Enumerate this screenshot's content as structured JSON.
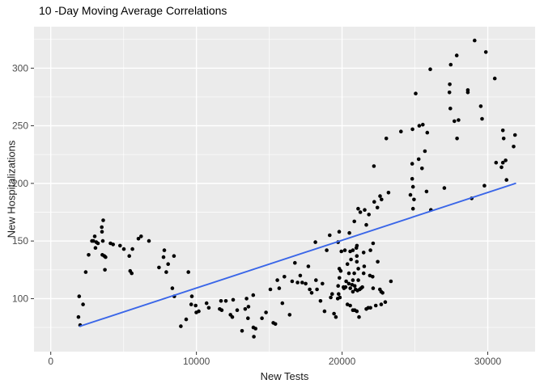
{
  "chart_data": {
    "type": "scatter",
    "title": "10 -Day Moving Average Correlations",
    "xlabel": "New Tests",
    "ylabel": "New Hospitalizations",
    "x_ticks": [
      0,
      10000,
      20000,
      30000
    ],
    "y_ticks": [
      100,
      150,
      200,
      250,
      300
    ],
    "xlim": [
      -1150,
      33250
    ],
    "ylim": [
      54,
      336
    ],
    "grid": true,
    "legend": "none",
    "panel_color": "#EBEBEB",
    "grid_major_color": "#FFFFFF",
    "grid_minor_color": "#F7F7F7",
    "tick_color": "#333333",
    "tick_label_color": "#4D4D4D",
    "point_color": "#000000",
    "trend_line": {
      "color": "#3A66E8",
      "x1": 2000,
      "y1": 76,
      "x2": 31900,
      "y2": 200
    },
    "points": [
      [
        1900,
        84
      ],
      [
        1950,
        102
      ],
      [
        2020,
        77
      ],
      [
        2220,
        95
      ],
      [
        2400,
        123
      ],
      [
        2600,
        138
      ],
      [
        2830,
        150
      ],
      [
        2930,
        150
      ],
      [
        3020,
        154
      ],
      [
        3070,
        144
      ],
      [
        3130,
        149
      ],
      [
        3240,
        148
      ],
      [
        3500,
        162
      ],
      [
        3520,
        158
      ],
      [
        3540,
        138
      ],
      [
        3575,
        150
      ],
      [
        3600,
        168
      ],
      [
        3680,
        137
      ],
      [
        3720,
        125
      ],
      [
        3760,
        136
      ],
      [
        4100,
        148
      ],
      [
        4280,
        147
      ],
      [
        4760,
        146
      ],
      [
        5020,
        143
      ],
      [
        5390,
        137
      ],
      [
        5450,
        124
      ],
      [
        5560,
        122
      ],
      [
        5610,
        143
      ],
      [
        6020,
        152
      ],
      [
        6200,
        154
      ],
      [
        6740,
        150
      ],
      [
        7430,
        127
      ],
      [
        7740,
        136
      ],
      [
        7800,
        142
      ],
      [
        7930,
        123
      ],
      [
        8060,
        130
      ],
      [
        8350,
        109
      ],
      [
        8460,
        137
      ],
      [
        8480,
        102
      ],
      [
        8930,
        76
      ],
      [
        9300,
        82
      ],
      [
        9450,
        123
      ],
      [
        9640,
        95
      ],
      [
        9685,
        102
      ],
      [
        9950,
        94
      ],
      [
        9990,
        88
      ],
      [
        10160,
        89
      ],
      [
        10700,
        96
      ],
      [
        10850,
        92
      ],
      [
        11600,
        91
      ],
      [
        11740,
        90
      ],
      [
        11685,
        98
      ],
      [
        12020,
        98
      ],
      [
        12520,
        99
      ],
      [
        12335,
        86
      ],
      [
        12465,
        84
      ],
      [
        12800,
        90
      ],
      [
        13130,
        72
      ],
      [
        13350,
        91
      ],
      [
        13445,
        100
      ],
      [
        13570,
        93
      ],
      [
        13540,
        83
      ],
      [
        13900,
        103
      ],
      [
        13910,
        75
      ],
      [
        14060,
        74
      ],
      [
        13945,
        67
      ],
      [
        14500,
        83
      ],
      [
        14780,
        88
      ],
      [
        15075,
        108
      ],
      [
        15280,
        79
      ],
      [
        15420,
        78
      ],
      [
        15555,
        116
      ],
      [
        15685,
        109
      ],
      [
        15900,
        96
      ],
      [
        16040,
        119
      ],
      [
        16400,
        86
      ],
      [
        16575,
        115
      ],
      [
        16760,
        131
      ],
      [
        16945,
        114
      ],
      [
        17130,
        120
      ],
      [
        17260,
        114
      ],
      [
        17500,
        113
      ],
      [
        17685,
        128
      ],
      [
        17780,
        108
      ],
      [
        17910,
        105
      ],
      [
        18170,
        149
      ],
      [
        18205,
        116
      ],
      [
        18280,
        108
      ],
      [
        18520,
        98
      ],
      [
        18650,
        113
      ],
      [
        18795,
        89
      ],
      [
        18945,
        142
      ],
      [
        19150,
        155
      ],
      [
        19225,
        101
      ],
      [
        19315,
        104
      ],
      [
        19445,
        87
      ],
      [
        19575,
        84
      ],
      [
        19700,
        100
      ],
      [
        19725,
        149
      ],
      [
        19730,
        111
      ],
      [
        19760,
        104
      ],
      [
        19800,
        158
      ],
      [
        19815,
        126
      ],
      [
        19820,
        118
      ],
      [
        19850,
        101
      ],
      [
        19905,
        124
      ],
      [
        19950,
        141
      ],
      [
        20095,
        110
      ],
      [
        20130,
        109
      ],
      [
        20190,
        142
      ],
      [
        20240,
        110
      ],
      [
        20280,
        115
      ],
      [
        20370,
        130
      ],
      [
        20370,
        95
      ],
      [
        20465,
        113
      ],
      [
        20470,
        122
      ],
      [
        20500,
        157
      ],
      [
        20555,
        141
      ],
      [
        20560,
        109
      ],
      [
        20555,
        94
      ],
      [
        20610,
        134
      ],
      [
        20685,
        112
      ],
      [
        20740,
        106
      ],
      [
        20740,
        116
      ],
      [
        20740,
        142
      ],
      [
        20740,
        90
      ],
      [
        20835,
        122
      ],
      [
        20840,
        167
      ],
      [
        20870,
        111
      ],
      [
        20870,
        90
      ],
      [
        20925,
        108
      ],
      [
        20980,
        144
      ],
      [
        21015,
        137
      ],
      [
        21020,
        146
      ],
      [
        21015,
        132
      ],
      [
        21015,
        89
      ],
      [
        21055,
        107
      ],
      [
        21100,
        178
      ],
      [
        21110,
        126
      ],
      [
        21110,
        116
      ],
      [
        21165,
        84
      ],
      [
        21205,
        108
      ],
      [
        21250,
        175
      ],
      [
        21295,
        109
      ],
      [
        21390,
        110
      ],
      [
        21480,
        140
      ],
      [
        21480,
        122
      ],
      [
        21550,
        177
      ],
      [
        21520,
        128
      ],
      [
        21665,
        164
      ],
      [
        21665,
        91
      ],
      [
        21840,
        173
      ],
      [
        21795,
        92
      ],
      [
        21905,
        120
      ],
      [
        21945,
        142
      ],
      [
        21945,
        92
      ],
      [
        22095,
        119
      ],
      [
        22130,
        148
      ],
      [
        22130,
        109
      ],
      [
        22185,
        215
      ],
      [
        22205,
        184
      ],
      [
        22315,
        94
      ],
      [
        22425,
        179
      ],
      [
        22445,
        132
      ],
      [
        22595,
        108
      ],
      [
        22610,
        189
      ],
      [
        22685,
        106
      ],
      [
        22685,
        95
      ],
      [
        22705,
        186
      ],
      [
        22780,
        105
      ],
      [
        22965,
        97
      ],
      [
        23035,
        239
      ],
      [
        23185,
        192
      ],
      [
        23350,
        115
      ],
      [
        24040,
        245
      ],
      [
        24690,
        190
      ],
      [
        24815,
        217
      ],
      [
        24815,
        204
      ],
      [
        24835,
        247
      ],
      [
        24870,
        197
      ],
      [
        24870,
        178
      ],
      [
        24935,
        186
      ],
      [
        25055,
        278
      ],
      [
        25260,
        221
      ],
      [
        25295,
        250
      ],
      [
        25485,
        213
      ],
      [
        25540,
        251
      ],
      [
        25685,
        228
      ],
      [
        25795,
        193
      ],
      [
        25850,
        244
      ],
      [
        26055,
        299
      ],
      [
        26095,
        177
      ],
      [
        27020,
        196
      ],
      [
        27370,
        279
      ],
      [
        27390,
        286
      ],
      [
        27430,
        265
      ],
      [
        27460,
        303
      ],
      [
        27710,
        254
      ],
      [
        27870,
        311
      ],
      [
        27890,
        239
      ],
      [
        27990,
        255
      ],
      [
        28630,
        281
      ],
      [
        28630,
        279
      ],
      [
        28900,
        187
      ],
      [
        29100,
        324
      ],
      [
        29520,
        267
      ],
      [
        29610,
        256
      ],
      [
        29770,
        198
      ],
      [
        29870,
        314
      ],
      [
        30480,
        291
      ],
      [
        30570,
        218
      ],
      [
        30945,
        214
      ],
      [
        31040,
        246
      ],
      [
        31040,
        218
      ],
      [
        31225,
        220
      ],
      [
        31095,
        239
      ],
      [
        31290,
        203
      ],
      [
        31780,
        232
      ],
      [
        31870,
        242
      ]
    ]
  }
}
